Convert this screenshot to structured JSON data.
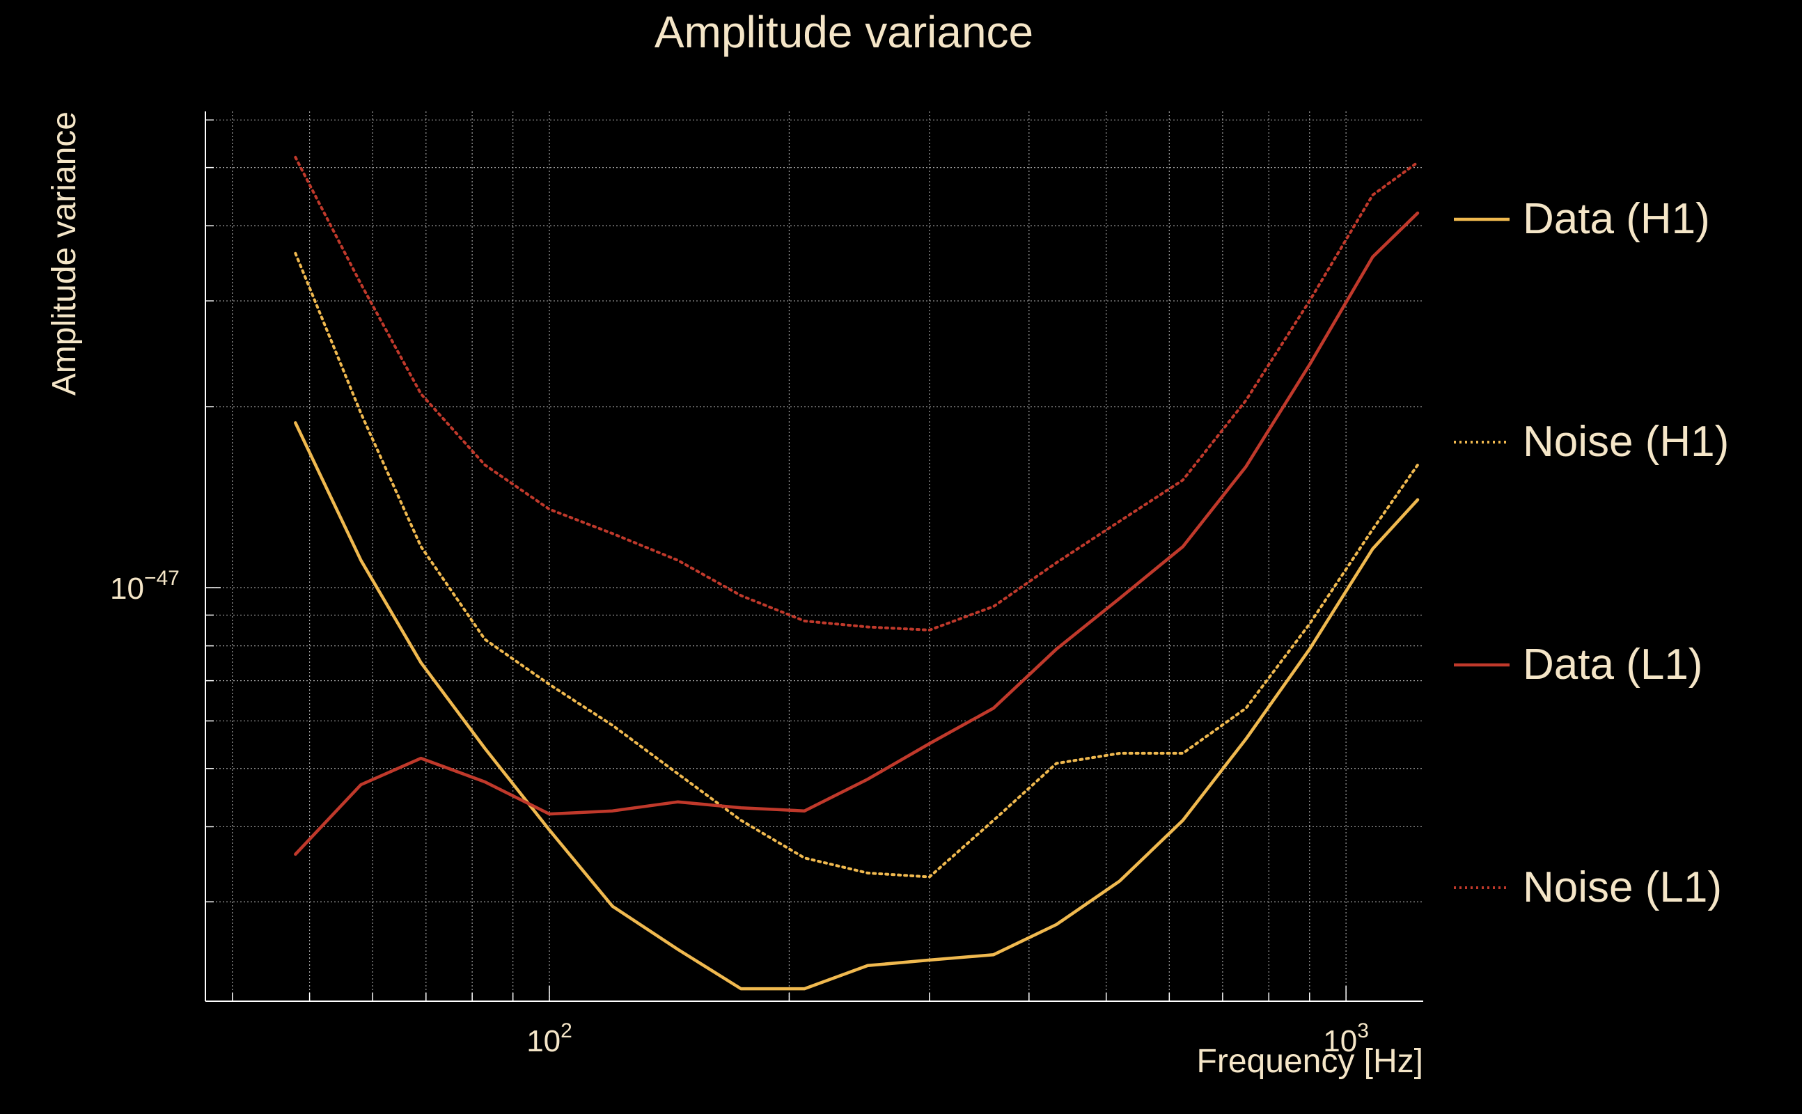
{
  "chart_data": {
    "type": "line",
    "title": "Amplitude variance",
    "xlabel": "Frequency [Hz]",
    "ylabel": "Amplitude variance",
    "x_scale": "log",
    "y_scale": "log",
    "xlim": [
      37,
      1250
    ],
    "ylim": [
      2.05e-48,
      6.2e-47
    ],
    "x_major_ticks": [
      {
        "value": 100,
        "base": "10",
        "exp": "2"
      },
      {
        "value": 1000,
        "base": "10",
        "exp": "3"
      }
    ],
    "y_major_ticks": [
      {
        "value": 1e-47,
        "base": "10",
        "exp": "−47"
      }
    ],
    "grid": true,
    "legend_position": "right",
    "colors": {
      "background": "#000000",
      "text": "#f5e6c8",
      "axis": "#ffffff",
      "grid": "#bdbdbd"
    },
    "x": [
      48,
      58,
      69,
      83,
      100,
      120,
      145,
      174,
      209,
      251,
      300,
      361,
      433,
      520,
      624,
      749,
      900,
      1080,
      1230
    ],
    "series": [
      {
        "name": "Data (H1)",
        "color": "#f0b94f",
        "dash": "solid",
        "values": [
          1.88e-47,
          1.11e-47,
          7.5e-48,
          5.4e-48,
          3.95e-48,
          2.95e-48,
          2.5e-48,
          2.15e-48,
          2.15e-48,
          2.35e-48,
          2.4e-48,
          2.45e-48,
          2.75e-48,
          3.25e-48,
          4.1e-48,
          5.6e-48,
          7.9e-48,
          1.16e-47,
          1.4e-47
        ]
      },
      {
        "name": "Noise (H1)",
        "color": "#f0b94f",
        "dash": "dotted",
        "values": [
          3.6e-47,
          1.95e-47,
          1.17e-47,
          8.2e-48,
          6.9e-48,
          5.9e-48,
          4.9e-48,
          4.1e-48,
          3.55e-48,
          3.35e-48,
          3.3e-48,
          4.1e-48,
          5.1e-48,
          5.3e-48,
          5.3e-48,
          6.3e-48,
          8.7e-48,
          1.25e-47,
          1.6e-47
        ]
      },
      {
        "name": "Data (L1)",
        "color": "#c0392b",
        "dash": "solid",
        "values": [
          3.6e-48,
          4.7e-48,
          5.2e-48,
          4.75e-48,
          4.2e-48,
          4.25e-48,
          4.4e-48,
          4.3e-48,
          4.25e-48,
          4.8e-48,
          5.5e-48,
          6.3e-48,
          7.9e-48,
          9.6e-48,
          1.17e-47,
          1.59e-47,
          2.35e-47,
          3.55e-47,
          4.2e-47
        ]
      },
      {
        "name": "Noise (L1)",
        "color": "#c0392b",
        "dash": "dotted",
        "values": [
          5.2e-47,
          3.2e-47,
          2.1e-47,
          1.6e-47,
          1.35e-47,
          1.23e-47,
          1.11e-47,
          9.7e-48,
          8.8e-48,
          8.6e-48,
          8.5e-48,
          9.3e-48,
          1.1e-47,
          1.29e-47,
          1.51e-47,
          2.05e-47,
          3e-47,
          4.5e-47,
          5.1e-47
        ]
      }
    ]
  }
}
